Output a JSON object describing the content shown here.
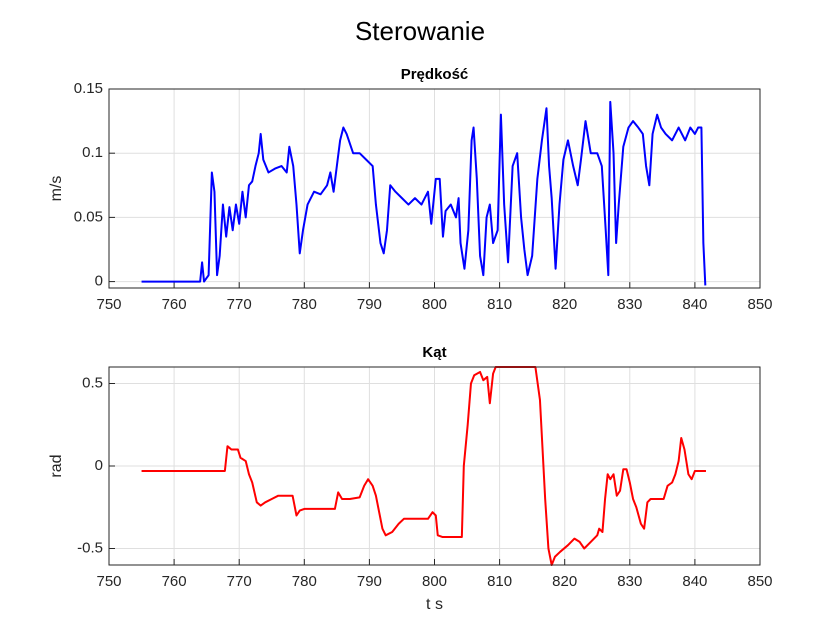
{
  "title": "Sterowanie",
  "chart_data": [
    {
      "type": "line",
      "title": "Prędkość",
      "ylabel": "m/s",
      "color": "#0000ff",
      "grid": true,
      "xlim": [
        750,
        850
      ],
      "xticks": [
        750,
        760,
        770,
        780,
        790,
        800,
        810,
        820,
        830,
        840,
        850
      ],
      "ylim": [
        -0.005,
        0.15
      ],
      "yticks": [
        0,
        0.05,
        0.1,
        0.15
      ],
      "x": [
        755,
        764,
        764.3,
        764.6,
        765.3,
        765.8,
        766.2,
        766.6,
        767,
        767.5,
        768,
        768.5,
        769,
        769.5,
        770,
        770.5,
        771,
        771.5,
        772,
        772.5,
        773,
        773.3,
        773.7,
        774.5,
        775.5,
        776.5,
        777.3,
        777.7,
        778.3,
        778.8,
        779.3,
        779.8,
        780.5,
        781.5,
        782.5,
        783.5,
        784,
        784.5,
        785,
        785.5,
        786,
        786.5,
        787.5,
        788.5,
        789.5,
        790.5,
        791,
        791.7,
        792.2,
        792.7,
        793.2,
        794,
        795,
        796,
        797,
        798,
        799,
        799.5,
        800.2,
        800.8,
        801.3,
        801.7,
        802.5,
        803.3,
        803.7,
        804,
        804.6,
        805.2,
        805.7,
        806,
        806.5,
        807,
        807.5,
        808,
        808.5,
        809,
        809.7,
        810.2,
        810.7,
        811.3,
        812,
        812.7,
        813.3,
        813.8,
        814.3,
        815,
        815.8,
        816.5,
        817.2,
        817.6,
        818,
        818.6,
        819.2,
        819.8,
        820.5,
        821.3,
        822,
        822.5,
        823.2,
        824,
        825,
        825.7,
        826.3,
        826.7,
        827,
        827.5,
        827.9,
        828.3,
        829,
        829.8,
        830.5,
        831.3,
        832,
        832.5,
        833,
        833.5,
        834.2,
        834.8,
        835.5,
        836.5,
        837.5,
        838.5,
        839.3,
        840,
        840.5,
        841,
        841.3,
        841.6
      ],
      "values": [
        0,
        0,
        0.015,
        0,
        0.005,
        0.085,
        0.07,
        0.005,
        0.02,
        0.06,
        0.035,
        0.058,
        0.04,
        0.06,
        0.045,
        0.07,
        0.05,
        0.075,
        0.078,
        0.09,
        0.1,
        0.115,
        0.095,
        0.085,
        0.088,
        0.09,
        0.085,
        0.105,
        0.09,
        0.06,
        0.022,
        0.04,
        0.06,
        0.07,
        0.068,
        0.075,
        0.085,
        0.07,
        0.09,
        0.11,
        0.12,
        0.115,
        0.1,
        0.1,
        0.095,
        0.09,
        0.06,
        0.03,
        0.022,
        0.04,
        0.075,
        0.07,
        0.065,
        0.06,
        0.065,
        0.06,
        0.07,
        0.045,
        0.08,
        0.08,
        0.035,
        0.055,
        0.06,
        0.05,
        0.065,
        0.03,
        0.01,
        0.04,
        0.11,
        0.12,
        0.08,
        0.02,
        0.005,
        0.05,
        0.06,
        0.03,
        0.04,
        0.13,
        0.06,
        0.015,
        0.09,
        0.1,
        0.05,
        0.025,
        0.005,
        0.02,
        0.08,
        0.11,
        0.135,
        0.09,
        0.065,
        0.01,
        0.06,
        0.095,
        0.11,
        0.09,
        0.075,
        0.095,
        0.125,
        0.1,
        0.1,
        0.09,
        0.04,
        0.005,
        0.14,
        0.1,
        0.03,
        0.06,
        0.105,
        0.12,
        0.125,
        0.12,
        0.115,
        0.09,
        0.075,
        0.115,
        0.13,
        0.12,
        0.115,
        0.11,
        0.12,
        0.11,
        0.12,
        0.115,
        0.12,
        0.12,
        0.03,
        -0.003
      ]
    },
    {
      "type": "line",
      "title": "Kąt",
      "ylabel": "rad",
      "xlabel": "t s",
      "color": "#ff0000",
      "grid": true,
      "xlim": [
        750,
        850
      ],
      "xticks": [
        750,
        760,
        770,
        780,
        790,
        800,
        810,
        820,
        830,
        840,
        850
      ],
      "ylim": [
        -0.6,
        0.6
      ],
      "yticks": [
        -0.5,
        0,
        0.5
      ],
      "x": [
        755,
        767.8,
        768.2,
        768.8,
        769.8,
        770.2,
        771,
        771.5,
        772,
        772.7,
        773.3,
        774,
        775,
        776,
        777,
        778.2,
        778.8,
        779.3,
        780,
        781,
        783,
        784.7,
        785.2,
        785.8,
        787,
        788.5,
        789.2,
        789.8,
        790.5,
        791,
        791.5,
        792,
        792.5,
        793.5,
        794.5,
        795.3,
        797,
        799,
        799.7,
        800.2,
        800.5,
        801.2,
        804.2,
        804.5,
        805.1,
        805.6,
        806.1,
        807,
        807.5,
        808.1,
        808.5,
        809,
        809.4,
        814.5,
        815.5,
        816.2,
        817,
        817.5,
        818,
        818.5,
        819.3,
        820.5,
        821.5,
        822.3,
        823,
        824,
        825,
        825.3,
        825.8,
        826.2,
        826.6,
        827,
        827.5,
        828,
        828.5,
        829,
        829.5,
        830,
        830.5,
        831,
        831.7,
        832.2,
        832.7,
        833.2,
        834.5,
        835.2,
        835.8,
        836.5,
        837,
        837.5,
        837.9,
        838.4,
        839,
        839.5,
        840,
        841.7
      ],
      "values": [
        -0.03,
        -0.03,
        0.12,
        0.1,
        0.1,
        0.05,
        0.03,
        -0.05,
        -0.1,
        -0.22,
        -0.24,
        -0.22,
        -0.2,
        -0.18,
        -0.18,
        -0.18,
        -0.3,
        -0.27,
        -0.26,
        -0.26,
        -0.26,
        -0.26,
        -0.16,
        -0.2,
        -0.2,
        -0.19,
        -0.12,
        -0.08,
        -0.12,
        -0.18,
        -0.28,
        -0.38,
        -0.42,
        -0.4,
        -0.35,
        -0.32,
        -0.32,
        -0.32,
        -0.28,
        -0.3,
        -0.42,
        -0.43,
        -0.43,
        0,
        0.25,
        0.5,
        0.55,
        0.57,
        0.52,
        0.54,
        0.38,
        0.56,
        0.6,
        0.6,
        0.6,
        0.4,
        -0.2,
        -0.5,
        -0.6,
        -0.55,
        -0.52,
        -0.48,
        -0.44,
        -0.46,
        -0.5,
        -0.46,
        -0.42,
        -0.38,
        -0.4,
        -0.2,
        -0.05,
        -0.08,
        -0.05,
        -0.18,
        -0.15,
        -0.02,
        -0.02,
        -0.1,
        -0.2,
        -0.25,
        -0.35,
        -0.38,
        -0.22,
        -0.2,
        -0.2,
        -0.2,
        -0.12,
        -0.1,
        -0.05,
        0.03,
        0.17,
        0.1,
        -0.05,
        -0.08,
        -0.03,
        -0.03
      ]
    }
  ]
}
